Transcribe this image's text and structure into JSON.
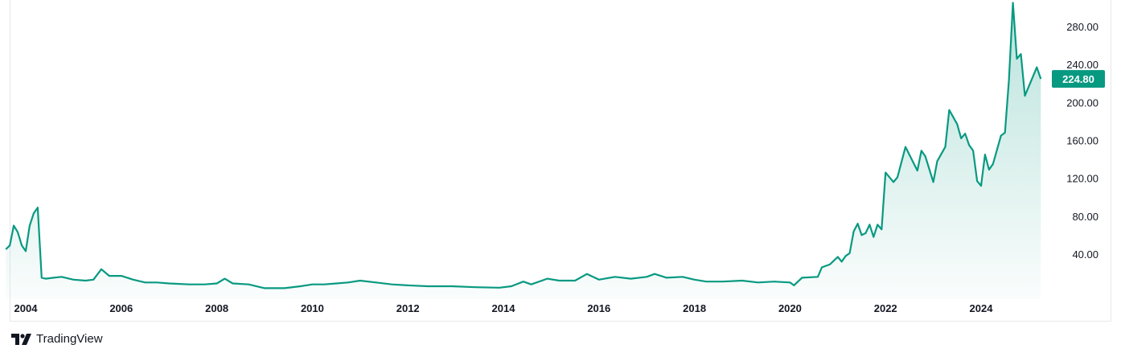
{
  "chart_data": {
    "type": "area",
    "title": "",
    "xlabel": "",
    "ylabel": "",
    "ylim": [
      0,
      310
    ],
    "y_ticks": [
      "40.00",
      "80.00",
      "120.00",
      "160.00",
      "200.00",
      "240.00",
      "280.00"
    ],
    "x_ticks": [
      "2004",
      "2006",
      "2008",
      "2010",
      "2012",
      "2014",
      "2016",
      "2018",
      "2020",
      "2022",
      "2024"
    ],
    "y_axis_position": "right",
    "grid": false,
    "last_value_label": "224.80",
    "colors": {
      "line": "#089981",
      "fill": "#089981",
      "label_bg": "#089981"
    },
    "series": [
      {
        "points": [
          [
            "2003-08",
            45
          ],
          [
            "2003-09",
            49
          ],
          [
            "2003-10",
            70
          ],
          [
            "2003-11",
            63
          ],
          [
            "2003-12",
            49
          ],
          [
            "2004-01",
            43
          ],
          [
            "2004-02",
            70
          ],
          [
            "2004-03",
            83
          ],
          [
            "2004-04",
            89
          ],
          [
            "2004-05",
            15
          ],
          [
            "2004-06",
            14
          ],
          [
            "2004-08",
            15
          ],
          [
            "2004-10",
            16
          ],
          [
            "2005-01",
            13
          ],
          [
            "2005-04",
            12
          ],
          [
            "2005-06",
            13
          ],
          [
            "2005-08",
            24
          ],
          [
            "2005-10",
            17
          ],
          [
            "2006-01",
            17
          ],
          [
            "2006-04",
            13
          ],
          [
            "2006-07",
            10
          ],
          [
            "2006-10",
            10
          ],
          [
            "2007-01",
            9
          ],
          [
            "2007-06",
            8
          ],
          [
            "2007-10",
            8
          ],
          [
            "2008-01",
            9
          ],
          [
            "2008-03",
            14
          ],
          [
            "2008-05",
            9
          ],
          [
            "2008-09",
            8
          ],
          [
            "2009-01",
            4
          ],
          [
            "2009-06",
            4
          ],
          [
            "2009-10",
            6
          ],
          [
            "2010-01",
            8
          ],
          [
            "2010-04",
            8
          ],
          [
            "2010-07",
            9
          ],
          [
            "2010-10",
            10
          ],
          [
            "2011-01",
            12
          ],
          [
            "2011-05",
            10
          ],
          [
            "2011-09",
            8
          ],
          [
            "2012-01",
            7
          ],
          [
            "2012-06",
            6
          ],
          [
            "2012-12",
            6
          ],
          [
            "2013-06",
            5
          ],
          [
            "2013-12",
            4.5
          ],
          [
            "2014-03",
            6
          ],
          [
            "2014-06",
            11
          ],
          [
            "2014-08",
            8
          ],
          [
            "2014-12",
            14
          ],
          [
            "2015-03",
            12
          ],
          [
            "2015-07",
            12
          ],
          [
            "2015-10",
            19
          ],
          [
            "2016-01",
            13
          ],
          [
            "2016-05",
            16
          ],
          [
            "2016-09",
            14
          ],
          [
            "2017-01",
            16
          ],
          [
            "2017-03",
            19
          ],
          [
            "2017-06",
            15
          ],
          [
            "2017-10",
            16
          ],
          [
            "2018-01",
            13
          ],
          [
            "2018-04",
            11
          ],
          [
            "2018-08",
            11
          ],
          [
            "2019-01",
            12
          ],
          [
            "2019-05",
            10
          ],
          [
            "2019-09",
            11
          ],
          [
            "2020-01",
            10
          ],
          [
            "2020-02",
            7
          ],
          [
            "2020-04",
            15
          ],
          [
            "2020-08",
            16
          ],
          [
            "2020-09",
            26
          ],
          [
            "2020-11",
            29
          ],
          [
            "2021-01",
            37
          ],
          [
            "2021-02",
            32
          ],
          [
            "2021-03",
            38
          ],
          [
            "2021-04",
            41
          ],
          [
            "2021-05",
            64
          ],
          [
            "2021-06",
            72
          ],
          [
            "2021-07",
            60
          ],
          [
            "2021-08",
            62
          ],
          [
            "2021-09",
            71
          ],
          [
            "2021-10",
            58
          ],
          [
            "2021-11",
            71
          ],
          [
            "2021-12",
            66
          ],
          [
            "2022-01",
            126
          ],
          [
            "2022-03",
            116
          ],
          [
            "2022-04",
            121
          ],
          [
            "2022-06",
            153
          ],
          [
            "2022-09",
            128
          ],
          [
            "2022-10",
            149
          ],
          [
            "2022-11",
            143
          ],
          [
            "2023-01",
            116
          ],
          [
            "2023-02",
            138
          ],
          [
            "2023-04",
            153
          ],
          [
            "2023-05",
            192
          ],
          [
            "2023-07",
            177
          ],
          [
            "2023-08",
            162
          ],
          [
            "2023-09",
            167
          ],
          [
            "2023-10",
            155
          ],
          [
            "2023-11",
            149
          ],
          [
            "2023-12",
            117
          ],
          [
            "2024-01",
            112
          ],
          [
            "2024-02",
            145
          ],
          [
            "2024-03",
            129
          ],
          [
            "2024-04",
            135
          ],
          [
            "2024-06",
            165
          ],
          [
            "2024-07",
            168
          ],
          [
            "2024-08",
            223
          ],
          [
            "2024-09",
            305
          ],
          [
            "2024-10",
            246
          ],
          [
            "2024-11",
            251
          ],
          [
            "2024-12",
            207
          ],
          [
            "2025-03",
            237
          ],
          [
            "2025-04",
            224.8
          ]
        ]
      }
    ]
  },
  "brand": {
    "name": "TradingView"
  }
}
